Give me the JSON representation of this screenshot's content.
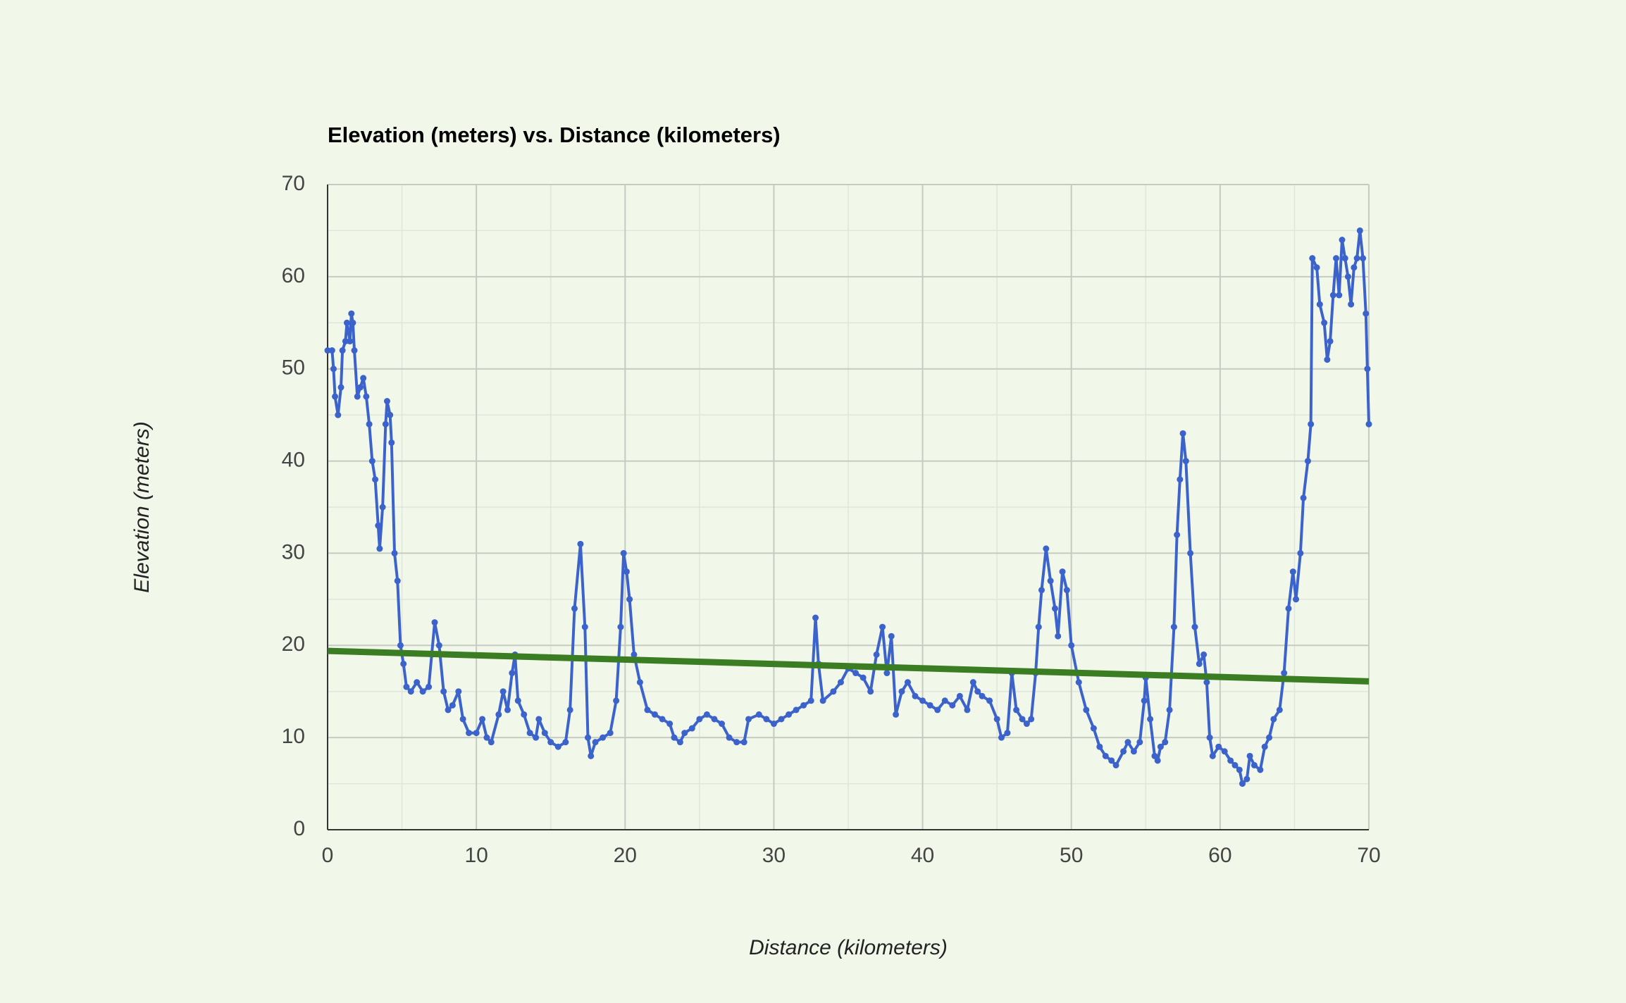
{
  "chart_data": {
    "type": "line",
    "title": "Elevation (meters) vs. Distance (kilometers)",
    "x_label": "Distance (kilometers)",
    "y_label": "Elevation (meters)",
    "xlim": [
      0,
      70
    ],
    "ylim": [
      0,
      70
    ],
    "xticks": [
      0,
      10,
      20,
      30,
      40,
      50,
      60,
      70
    ],
    "yticks": [
      0,
      10,
      20,
      30,
      40,
      50,
      60,
      70
    ],
    "grid": true,
    "minor_grid": true,
    "series": [
      {
        "color": "#3c63cc",
        "markers": true,
        "x": [
          0,
          0.3,
          0.4,
          0.5,
          0.7,
          0.9,
          1.0,
          1.2,
          1.3,
          1.5,
          1.6,
          1.7,
          1.8,
          2.0,
          2.2,
          2.4,
          2.6,
          2.8,
          3.0,
          3.2,
          3.4,
          3.5,
          3.7,
          3.9,
          4.0,
          4.2,
          4.3,
          4.5,
          4.7,
          4.9,
          5.1,
          5.3,
          5.6,
          6.0,
          6.4,
          6.8,
          7.0,
          7.2,
          7.5,
          7.8,
          8.1,
          8.4,
          8.8,
          9.1,
          9.5,
          10.0,
          10.4,
          10.7,
          11.0,
          11.5,
          11.8,
          12.1,
          12.4,
          12.6,
          12.8,
          13.2,
          13.6,
          14.0,
          14.2,
          14.6,
          15.0,
          15.5,
          16.0,
          16.3,
          16.6,
          17.0,
          17.3,
          17.5,
          17.7,
          18.0,
          18.5,
          19.0,
          19.4,
          19.7,
          19.9,
          20.1,
          20.3,
          20.6,
          21.0,
          21.5,
          22.0,
          22.5,
          23.0,
          23.3,
          23.7,
          24.0,
          24.5,
          25.0,
          25.5,
          26.0,
          26.5,
          27.0,
          27.5,
          28.0,
          28.3,
          29.0,
          29.5,
          30.0,
          30.5,
          31.0,
          31.5,
          32.0,
          32.5,
          32.8,
          33.0,
          33.3,
          34.0,
          34.5,
          35.0,
          35.5,
          36.0,
          36.5,
          36.9,
          37.3,
          37.6,
          37.9,
          38.2,
          38.6,
          39.0,
          39.5,
          40.0,
          40.5,
          41.0,
          41.5,
          42.0,
          42.5,
          43.0,
          43.4,
          43.7,
          44.0,
          44.5,
          45.0,
          45.3,
          45.7,
          46.0,
          46.3,
          46.7,
          47.0,
          47.3,
          47.6,
          47.8,
          48.0,
          48.3,
          48.6,
          48.9,
          49.1,
          49.4,
          49.7,
          50.0,
          50.5,
          51.0,
          51.5,
          51.9,
          52.3,
          52.7,
          53.0,
          53.5,
          53.8,
          54.2,
          54.6,
          54.9,
          55.0,
          55.3,
          55.6,
          55.8,
          56.0,
          56.3,
          56.6,
          56.9,
          57.1,
          57.3,
          57.5,
          57.7,
          58.0,
          58.3,
          58.6,
          58.9,
          59.1,
          59.3,
          59.5,
          59.9,
          60.3,
          60.7,
          61.0,
          61.3,
          61.5,
          61.8,
          62.0,
          62.3,
          62.7,
          63.0,
          63.3,
          63.6,
          64.0,
          64.3,
          64.6,
          64.9,
          65.1,
          65.4,
          65.6,
          65.9,
          66.1,
          66.2,
          66.5,
          66.7,
          67.0,
          67.2,
          67.4,
          67.6,
          67.8,
          68.0,
          68.2,
          68.4,
          68.6,
          68.8,
          69.0,
          69.2,
          69.4,
          69.6,
          69.8,
          69.9,
          70.0
        ],
        "values": [
          52,
          52,
          50,
          47,
          45,
          48,
          52,
          53,
          55,
          53,
          56,
          55,
          52,
          47,
          48,
          49,
          47,
          44,
          40,
          38,
          33,
          30.5,
          35,
          44,
          46.5,
          45,
          42,
          30,
          27,
          20,
          18,
          15.5,
          15,
          16,
          15,
          15.5,
          19,
          22.5,
          20,
          15,
          13,
          13.5,
          15,
          12,
          10.5,
          10.5,
          12,
          10,
          9.5,
          12.5,
          15,
          13,
          17,
          19,
          14,
          12.5,
          10.5,
          10,
          12,
          10.5,
          9.5,
          9,
          9.5,
          13,
          24,
          31,
          22,
          10,
          8,
          9.5,
          10,
          10.5,
          14,
          22,
          30,
          28,
          25,
          19,
          16,
          13,
          12.5,
          12,
          11.5,
          10,
          9.5,
          10.5,
          11,
          12,
          12.5,
          12,
          11.5,
          10,
          9.5,
          9.5,
          12,
          12.5,
          12,
          11.5,
          12,
          12.5,
          13,
          13.5,
          14,
          23,
          18,
          14,
          15,
          16,
          17.5,
          17,
          16.5,
          15,
          19,
          22,
          17,
          21,
          12.5,
          15,
          16,
          14.5,
          14,
          13.5,
          13,
          14,
          13.5,
          14.5,
          13,
          16,
          15,
          14.5,
          14,
          12,
          10,
          10.5,
          17,
          13,
          12,
          11.5,
          12,
          17,
          22,
          26,
          30.5,
          27,
          24,
          21,
          28,
          26,
          20,
          16,
          13,
          11,
          9,
          8,
          7.5,
          7,
          8.5,
          9.5,
          8.5,
          9.5,
          14,
          16.5,
          12,
          8,
          7.5,
          9,
          9.5,
          13,
          22,
          32,
          38,
          43,
          40,
          30,
          22,
          18,
          19,
          16,
          10,
          8,
          9,
          8.5,
          7.5,
          7,
          6.5,
          5,
          5.5,
          8,
          7,
          6.5,
          9,
          10,
          12,
          13,
          17,
          24,
          28,
          25,
          30,
          36,
          40,
          44,
          62,
          61,
          57,
          55,
          51,
          53,
          58,
          62,
          58,
          64,
          62,
          60,
          57,
          61,
          62,
          65,
          62,
          56,
          50,
          44
        ]
      },
      {
        "color": "#3a7d22",
        "markers": false,
        "x": [
          0,
          70
        ],
        "values": [
          19.4,
          16.1
        ]
      }
    ]
  }
}
